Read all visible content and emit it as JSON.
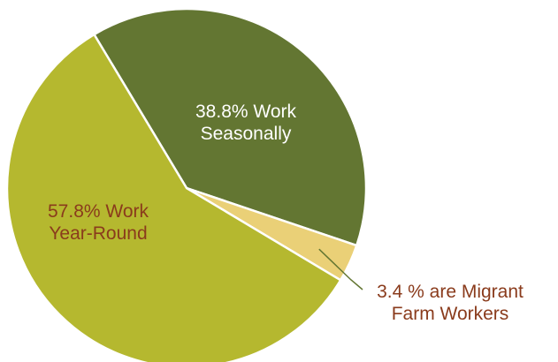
{
  "chart_data": {
    "type": "pie",
    "title": "",
    "slices": [
      {
        "name": "Work Seasonally",
        "value": 38.8,
        "color": "#637632",
        "label_lines": [
          "38.8% Work",
          "Seasonally"
        ],
        "label_color": "#ffffff"
      },
      {
        "name": "Migrant Farm Workers",
        "value": 3.4,
        "color": "#ead077",
        "label_lines": [
          "3.4 % are Migrant",
          "Farm Workers"
        ],
        "label_color": "#8a3b1c"
      },
      {
        "name": "Work Year-Round",
        "value": 57.8,
        "color": "#b5b82f",
        "label_lines": [
          "57.8% Work",
          "Year-Round"
        ],
        "label_color": "#8a3b1c"
      }
    ],
    "leader_line_color": "#637632"
  }
}
